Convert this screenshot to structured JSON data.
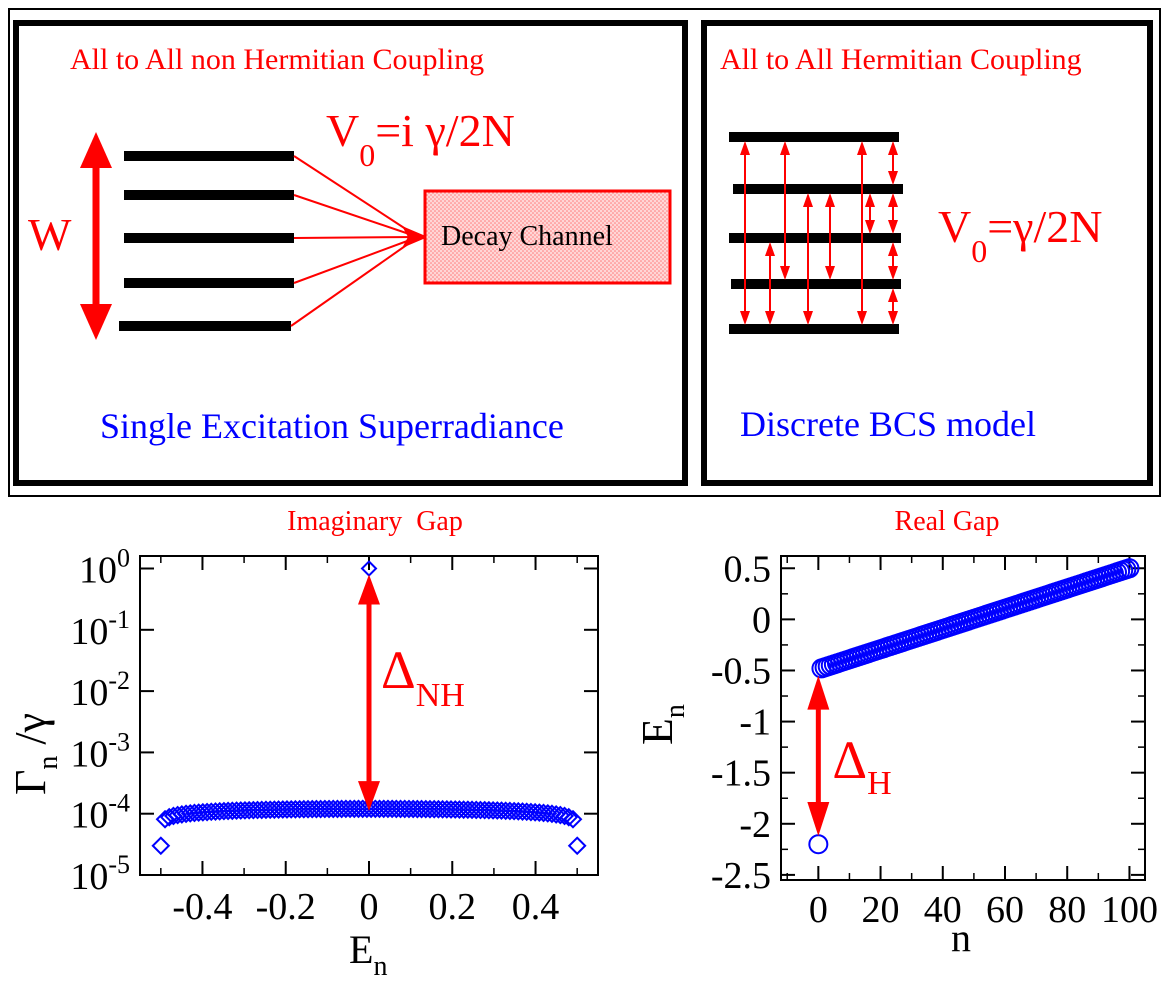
{
  "top": {
    "left_panel": {
      "heading": "All to All non Hermitian Coupling",
      "width_label": "W",
      "coupling": {
        "base": "V",
        "sub": "0",
        "rest": "=i γ/2N"
      },
      "channel_label": "Decay Channel",
      "caption": "Single Excitation Superradiance"
    },
    "right_panel": {
      "heading": "All to All Hermitian Coupling",
      "coupling": {
        "base": "V",
        "sub": "0",
        "rest": "=γ/2N"
      },
      "caption": "Discrete BCS model"
    }
  },
  "colors": {
    "accent": "#ff0000",
    "data": "#0000ff",
    "ink": "#000000"
  },
  "chart_data": [
    {
      "type": "scatter",
      "title": "Imaginary  Gap",
      "xlabel": {
        "base": "E",
        "sub": "n"
      },
      "ylabel": {
        "base": "Γ",
        "sub": "n",
        "rest": " /γ"
      },
      "xlim": [
        -0.55,
        0.55
      ],
      "ylim": [
        1e-05,
        1.6
      ],
      "yscale": "log",
      "xticks": [
        {
          "v": -0.4,
          "label": "-0.4"
        },
        {
          "v": -0.2,
          "label": "-0.2"
        },
        {
          "v": 0,
          "label": "0"
        },
        {
          "v": 0.2,
          "label": "0.2"
        },
        {
          "v": 0.4,
          "label": "0.4"
        }
      ],
      "yticks": [
        {
          "exp": 0,
          "label_base": "10",
          "label_exp": "0"
        },
        {
          "exp": -1,
          "label_base": "10",
          "label_exp": "-1"
        },
        {
          "exp": -2,
          "label_base": "10",
          "label_exp": "-2"
        },
        {
          "exp": -3,
          "label_base": "10",
          "label_exp": "-3"
        },
        {
          "exp": -4,
          "label_base": "10",
          "label_exp": "-4"
        },
        {
          "exp": -5,
          "label_base": "10",
          "label_exp": "-5"
        }
      ],
      "marker": "diamond",
      "series": [
        {
          "n_points": 100,
          "x_range": [
            -0.5,
            0.5
          ],
          "y_center": 0.00012,
          "y_edge": 3e-05,
          "extra_point": {
            "x": 0,
            "y": 1.0
          }
        }
      ],
      "gap_annotation": {
        "x": 0,
        "y_from": 0.00011,
        "y_to": 0.8,
        "label": {
          "base": "Δ",
          "sub": "NH"
        }
      }
    },
    {
      "type": "scatter",
      "title": "Real Gap",
      "xlabel": {
        "base": "n"
      },
      "ylabel": {
        "base": "E",
        "sub": "n"
      },
      "xlim": [
        -12,
        105
      ],
      "ylim": [
        -2.55,
        0.62
      ],
      "xticks": [
        {
          "v": 0,
          "label": "0"
        },
        {
          "v": 20,
          "label": "20"
        },
        {
          "v": 40,
          "label": "40"
        },
        {
          "v": 60,
          "label": "60"
        },
        {
          "v": 80,
          "label": "80"
        },
        {
          "v": 100,
          "label": "100"
        }
      ],
      "yticks": [
        {
          "v": 0.5,
          "label": "0.5"
        },
        {
          "v": 0,
          "label": "0"
        },
        {
          "v": -0.5,
          "label": "-0.5"
        },
        {
          "v": -1,
          "label": "-1"
        },
        {
          "v": -1.5,
          "label": "-1.5"
        },
        {
          "v": -2,
          "label": "-2"
        },
        {
          "v": -2.5,
          "label": "-2.5"
        }
      ],
      "marker": "circle",
      "series": [
        {
          "n_points": 100,
          "x_range": [
            1,
            100
          ],
          "y_range": [
            -0.48,
            0.5
          ],
          "extra_point": {
            "x": 0,
            "y": -2.2
          }
        }
      ],
      "gap_annotation": {
        "x": 0,
        "y_from": -0.55,
        "y_to": -2.12,
        "label": {
          "base": "Δ",
          "sub": "H"
        }
      }
    }
  ]
}
